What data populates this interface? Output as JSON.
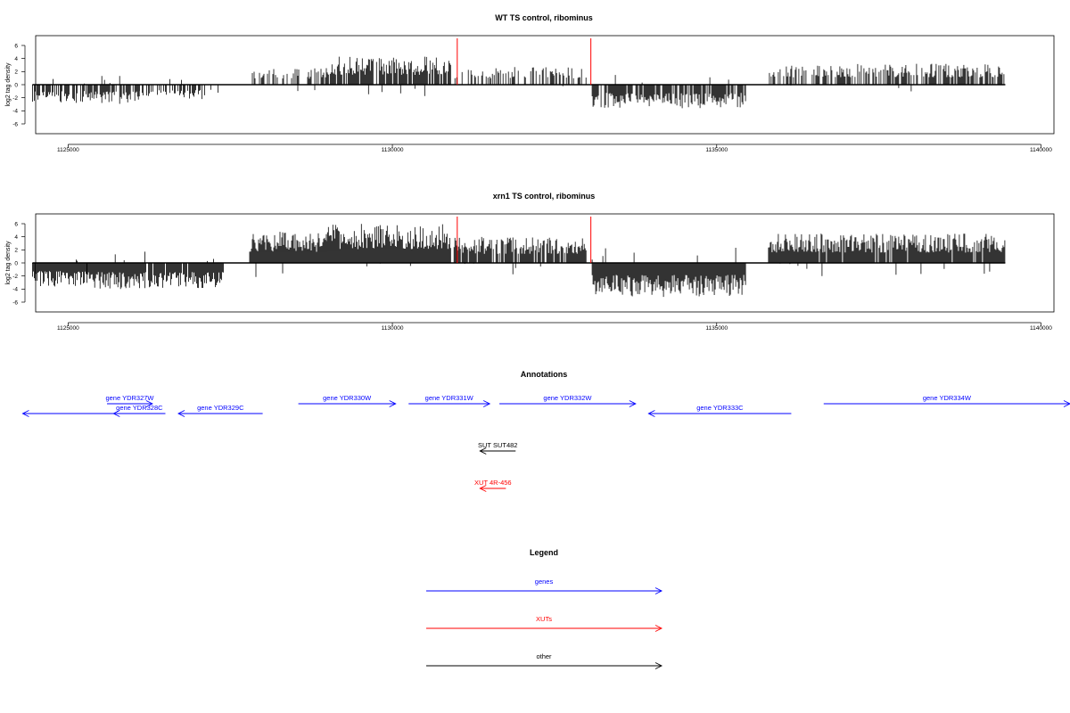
{
  "colors": {
    "gene": "#0000ff",
    "xut": "#ff0000",
    "other": "#000000",
    "marker": "#ff0000",
    "signal": "#000000"
  },
  "chart_data": [
    {
      "type": "bar",
      "title": "WT TS control, ribominus",
      "ylabel": "log2 tag density",
      "xlim": [
        1124500,
        1140200
      ],
      "ylim": [
        -7.5,
        7.5
      ],
      "x_ticks": [
        1125000,
        1130000,
        1135000,
        1140000
      ],
      "x_tick_labels": [
        "1125000",
        "1130000",
        "1135000",
        "1140000"
      ],
      "y_ticks": [
        6,
        4,
        2,
        0,
        -2,
        -4,
        -6
      ],
      "y_tick_labels": [
        "6",
        "4",
        "2",
        "0",
        "-2",
        "-4",
        "-6"
      ],
      "x_range": [
        1124450,
        1139450
      ],
      "markers": [
        1131000,
        1133060
      ],
      "segments": [
        {
          "from": 1124450,
          "to": 1125300,
          "dir": -1,
          "scale": 2.8,
          "density": 0.7
        },
        {
          "from": 1125300,
          "to": 1126100,
          "dir": -1,
          "scale": 3.0,
          "density": 0.75
        },
        {
          "from": 1126100,
          "to": 1127400,
          "dir": -1,
          "scale": 2.2,
          "density": 0.35
        },
        {
          "from": 1127800,
          "to": 1129000,
          "dir": 1,
          "scale": 2.6,
          "density": 0.4
        },
        {
          "from": 1129000,
          "to": 1130900,
          "dir": 1,
          "scale": 4.3,
          "density": 0.85
        },
        {
          "from": 1130950,
          "to": 1133000,
          "dir": 1,
          "scale": 2.8,
          "density": 0.4
        },
        {
          "from": 1133080,
          "to": 1135450,
          "dir": -1,
          "scale": 3.6,
          "density": 0.8
        },
        {
          "from": 1135800,
          "to": 1139450,
          "dir": 1,
          "scale": 3.2,
          "density": 0.6
        }
      ],
      "seed": 7
    },
    {
      "type": "bar",
      "title": "xrn1 TS control, ribominus",
      "ylabel": "log2 tag density",
      "xlim": [
        1124500,
        1140200
      ],
      "ylim": [
        -7.5,
        7.5
      ],
      "x_ticks": [
        1125000,
        1130000,
        1135000,
        1140000
      ],
      "x_tick_labels": [
        "1125000",
        "1130000",
        "1135000",
        "1140000"
      ],
      "y_ticks": [
        6,
        4,
        2,
        0,
        -2,
        -4,
        -6
      ],
      "y_tick_labels": [
        "6",
        "4",
        "2",
        "0",
        "-2",
        "-4",
        "-6"
      ],
      "x_range": [
        1124450,
        1139450
      ],
      "markers": [
        1131000,
        1133060
      ],
      "segments": [
        {
          "from": 1124450,
          "to": 1125300,
          "dir": -1,
          "scale": 3.6,
          "density": 1.0
        },
        {
          "from": 1125300,
          "to": 1126100,
          "dir": -1,
          "scale": 4.0,
          "density": 1.0
        },
        {
          "from": 1126100,
          "to": 1127400,
          "dir": -1,
          "scale": 4.0,
          "density": 0.9
        },
        {
          "from": 1127800,
          "to": 1129000,
          "dir": 1,
          "scale": 4.8,
          "density": 1.0
        },
        {
          "from": 1129000,
          "to": 1130900,
          "dir": 1,
          "scale": 6.0,
          "density": 1.0
        },
        {
          "from": 1130950,
          "to": 1133000,
          "dir": 1,
          "scale": 4.0,
          "density": 0.9
        },
        {
          "from": 1133080,
          "to": 1135450,
          "dir": -1,
          "scale": 5.2,
          "density": 1.0
        },
        {
          "from": 1135800,
          "to": 1139450,
          "dir": 1,
          "scale": 4.5,
          "density": 0.95
        }
      ],
      "seed": 13
    }
  ],
  "annotations": {
    "title": "Annotations",
    "features": [
      {
        "label": "",
        "category": "gene",
        "from": 1124300,
        "to": 1126300,
        "row": 1,
        "dir": -1
      },
      {
        "label": "gene YDR327W",
        "category": "gene",
        "from": 1125600,
        "to": 1126300,
        "row": 0,
        "dir": 1
      },
      {
        "label": "gene YDR328C",
        "category": "gene",
        "from": 1125700,
        "to": 1126500,
        "row": 1,
        "dir": -1
      },
      {
        "label": "gene YDR329C",
        "category": "gene",
        "from": 1126700,
        "to": 1128000,
        "row": 1,
        "dir": -1
      },
      {
        "label": "gene YDR330W",
        "category": "gene",
        "from": 1128550,
        "to": 1130050,
        "row": 0,
        "dir": 1
      },
      {
        "label": "gene YDR331W",
        "category": "gene",
        "from": 1130250,
        "to": 1131500,
        "row": 0,
        "dir": 1
      },
      {
        "label": "gene YDR332W",
        "category": "gene",
        "from": 1131650,
        "to": 1133750,
        "row": 0,
        "dir": 1
      },
      {
        "label": "gene YDR333C",
        "category": "gene",
        "from": 1133950,
        "to": 1136150,
        "row": 1,
        "dir": -1
      },
      {
        "label": "gene YDR334W",
        "category": "gene",
        "from": 1136650,
        "to": 1141000,
        "row": 0,
        "dir": 1
      },
      {
        "label": "SUT SUT482",
        "category": "other",
        "from": 1131350,
        "to": 1131900,
        "row": 2,
        "dir": -1
      },
      {
        "label": "XUT 4R-456",
        "category": "xut",
        "from": 1131350,
        "to": 1131750,
        "row": 3,
        "dir": -1
      }
    ]
  },
  "legend": {
    "title": "Legend",
    "items": [
      {
        "label": "genes",
        "category": "gene"
      },
      {
        "label": "XUTs",
        "category": "xut"
      },
      {
        "label": "other",
        "category": "other"
      }
    ]
  }
}
